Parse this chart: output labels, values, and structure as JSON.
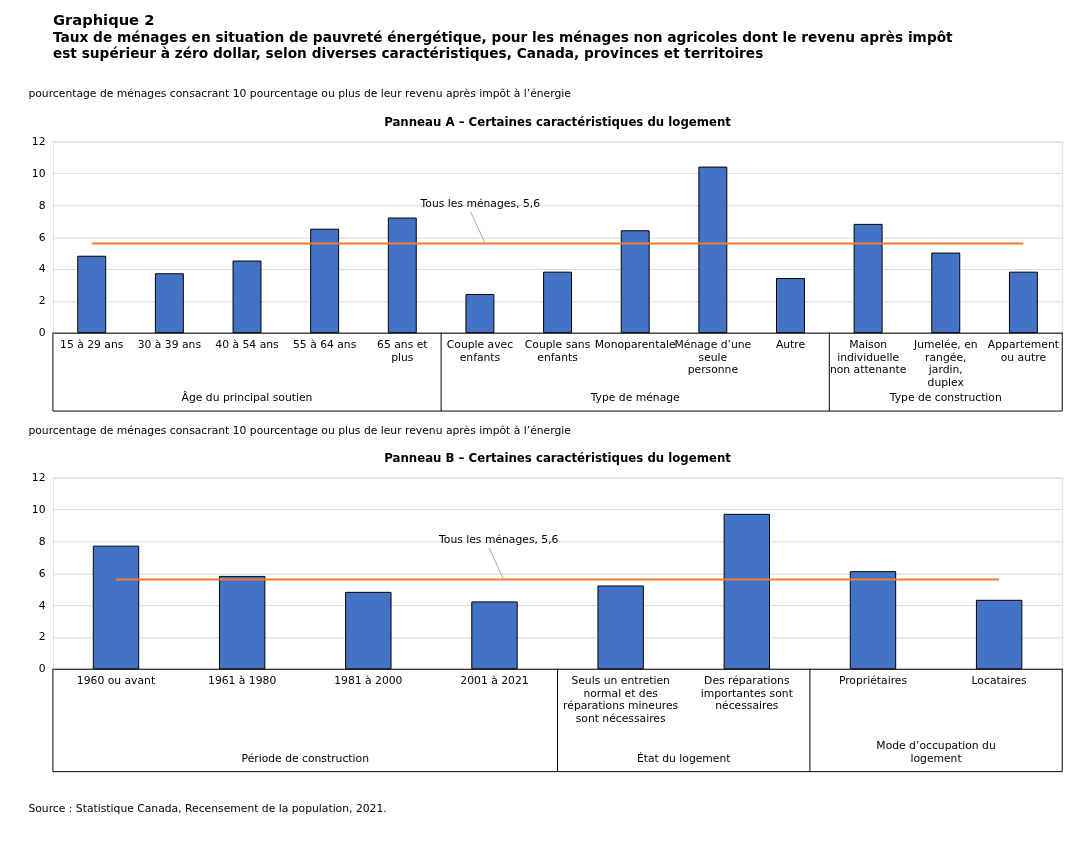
{
  "chart_data": [
    {
      "type": "other",
      "title": "Graphique 2",
      "subtitle": "Taux de ménages en situation de pauvreté énergétique, pour les ménages non agricoles dont le revenu après impôt est supérieur à zéro dollar, selon diverses caractéristiques, Canada, provinces et territoires"
    },
    {
      "type": "bar",
      "title": "Panneau A – Certaines caractéristiques du logement",
      "ylabel": "pourcentage de ménages consacrant 10 pourcentage ou plus de leur revenu après impôt à l’énergie",
      "categories": [
        "15 à 29 ans",
        "30 à 39 ans",
        "40 à 54 ans",
        "55 à 64 ans",
        "65 ans et plus",
        "Couple avec enfants",
        "Couple sans enfants",
        "Monoparentale",
        "Ménage d’une seule personne",
        "Autre",
        "Maison individuelle non attenante",
        "Jumelée, en rangée, jardin, duplex",
        "Appartement ou autre"
      ],
      "values": [
        4.8,
        3.7,
        4.5,
        6.5,
        7.2,
        2.4,
        3.8,
        6.4,
        10.4,
        3.4,
        6.8,
        5.0,
        3.8
      ],
      "color": "#4472c4",
      "ylim": [
        0,
        12
      ],
      "yticks": [
        0,
        2,
        4,
        6,
        8,
        10,
        12
      ],
      "grid": "y",
      "ref_lines": [
        {
          "axis": "y",
          "value": 5.6,
          "label": "Tous les ménages, 5,6",
          "color": "#ed7d31"
        }
      ],
      "annotations": [
        "Âge du principal soutien",
        "Type de ménage",
        "Type de construction"
      ]
    },
    {
      "type": "bar",
      "title": "Panneau B – Certaines caractéristiques du logement",
      "ylabel": "pourcentage de ménages consacrant 10 pourcentage ou plus de leur revenu après impôt à l’énergie",
      "categories": [
        "1960 ou avant",
        "1961 à 1980",
        "1981 à 2000",
        "2001 à 2021",
        "Seuls un entretien normal et des réparations mineures sont nécessaires",
        "Des réparations importantes sont nécessaires",
        "Propriétaires",
        "Locataires"
      ],
      "values": [
        7.7,
        5.8,
        4.8,
        4.2,
        5.2,
        9.7,
        6.1,
        4.3
      ],
      "color": "#4472c4",
      "ylim": [
        0,
        12
      ],
      "yticks": [
        0,
        2,
        4,
        6,
        8,
        10,
        12
      ],
      "grid": "y",
      "ref_lines": [
        {
          "axis": "y",
          "value": 5.6,
          "label": "Tous les ménages, 5,6",
          "color": "#ed7d31"
        }
      ],
      "annotations": [
        "Période de construction",
        "État du logement",
        "Mode d’occupation du logement",
        "Source : Statistique Canada, Recensement de la population, 2021."
      ]
    }
  ]
}
